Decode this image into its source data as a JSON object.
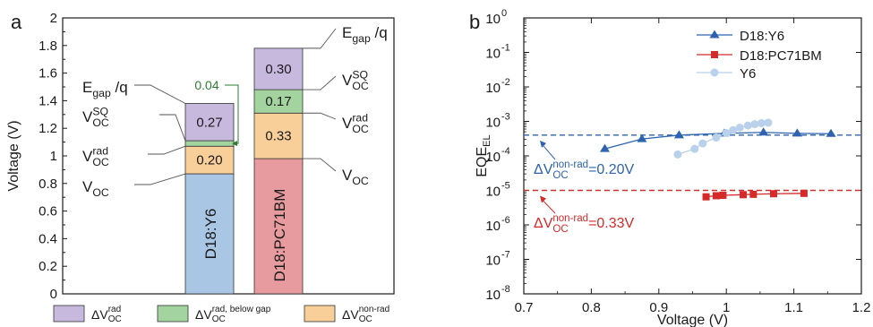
{
  "chart_data": [
    {
      "panel": "a",
      "type": "bar",
      "stacked": true,
      "ylabel": "Voltage (V)",
      "ylim": [
        0,
        2
      ],
      "yticks": [
        "0",
        "0.2",
        "0.4",
        "0.6",
        "0.8",
        "1",
        "1.2",
        "1.4",
        "1.6",
        "1.8",
        "2"
      ],
      "categories": [
        "D18:Y6",
        "D18:PC71BM"
      ],
      "bars": [
        {
          "name": "D18:Y6",
          "voc": 0.87,
          "segments": [
            {
              "kind": "nonrad",
              "from": 0.87,
              "to": 1.07,
              "label": "0.20"
            },
            {
              "kind": "below",
              "from": 1.07,
              "to": 1.11,
              "label": "0.04"
            },
            {
              "kind": "rad",
              "from": 1.11,
              "to": 1.38,
              "label": "0.27"
            }
          ],
          "levels": [
            {
              "base": "E",
              "sub": "gap",
              "sup": "",
              "suffix": " /q",
              "value": 1.38
            },
            {
              "base": "V",
              "sub": "OC",
              "sup": "SQ",
              "suffix": "",
              "value": 1.11
            },
            {
              "base": "V",
              "sub": "OC",
              "sup": "rad",
              "suffix": "",
              "value": 1.07
            },
            {
              "base": "V",
              "sub": "OC",
              "sup": "",
              "suffix": "",
              "value": 0.87
            }
          ]
        },
        {
          "name": "D18:PC71BM",
          "voc": 0.98,
          "segments": [
            {
              "kind": "nonrad",
              "from": 0.98,
              "to": 1.31,
              "label": "0.33"
            },
            {
              "kind": "below",
              "from": 1.31,
              "to": 1.48,
              "label": "0.17"
            },
            {
              "kind": "rad",
              "from": 1.48,
              "to": 1.78,
              "label": "0.30"
            }
          ],
          "levels": [
            {
              "base": "E",
              "sub": "gap",
              "sup": "",
              "suffix": " /q",
              "value": 1.78
            },
            {
              "base": "V",
              "sub": "OC",
              "sup": "SQ",
              "suffix": "",
              "value": 1.48
            },
            {
              "base": "V",
              "sub": "OC",
              "sup": "rad",
              "suffix": "",
              "value": 1.31
            },
            {
              "base": "V",
              "sub": "OC",
              "sup": "",
              "suffix": "",
              "value": 0.98
            }
          ]
        }
      ],
      "legend": [
        {
          "kind": "rad",
          "sup": "rad"
        },
        {
          "kind": "below",
          "sup": "rad, below gap"
        },
        {
          "kind": "nonrad",
          "sup": "non-rad"
        }
      ],
      "legend_base": "ΔV",
      "legend_sub": "OC",
      "colors": {
        "rad": "#c7b8de",
        "below": "#a3d4a0",
        "nonrad": "#f8cf99",
        "voc_y6": "#a9c6e4",
        "voc_pc": "#e89b9e",
        "annotation": "#2e7d32"
      }
    },
    {
      "panel": "b",
      "type": "scatter",
      "xlabel": "Voltage (V)",
      "ylabel": "EQE",
      "ylabel_sub": "EL",
      "xlim": [
        0.7,
        1.2
      ],
      "xticks": [
        "0.7",
        "0.8",
        "0.9",
        "1",
        "1.1",
        "1.2"
      ],
      "ylim_exp": [
        -8,
        0
      ],
      "ytick_base": "10",
      "ytick_exps": [
        "-8",
        "-7",
        "-6",
        "-5",
        "-4",
        "-3",
        "-2",
        "-1",
        "0"
      ],
      "legend_position": "top-right",
      "series": [
        {
          "name": "D18:Y6",
          "marker": "triangle",
          "color": "#2e63b0",
          "x": [
            0.82,
            0.875,
            0.93,
            0.997,
            1.055,
            1.105,
            1.155
          ],
          "y": [
            0.00016,
            0.00031,
            0.0004,
            0.00045,
            0.00048,
            0.00045,
            0.00044
          ]
        },
        {
          "name": "D18:PC71BM",
          "marker": "square",
          "color": "#d42a2a",
          "x": [
            0.97,
            0.985,
            0.995,
            1.025,
            1.04,
            1.07,
            1.115
          ],
          "y": [
            6.5e-06,
            7e-06,
            7.2e-06,
            7.5e-06,
            7.7e-06,
            8e-06,
            8.2e-06
          ]
        },
        {
          "name": "Y6",
          "marker": "circle",
          "color": "#b9d1ea",
          "x": [
            0.928,
            0.953,
            0.965,
            0.985,
            1.0,
            1.01,
            1.02,
            1.032,
            1.042,
            1.052,
            1.062
          ],
          "y": [
            0.00011,
            0.00016,
            0.00023,
            0.00034,
            0.00046,
            0.00056,
            0.00066,
            0.00076,
            0.00083,
            0.00089,
            0.00092
          ]
        }
      ],
      "reference_lines": [
        {
          "y": 0.0004,
          "color": "#2e63b0"
        },
        {
          "y": 1e-05,
          "color": "#d42a2a"
        }
      ],
      "annotations": [
        {
          "base": "ΔV",
          "sub": "OC",
          "sup": "non-rad",
          "tail": "=0.20V",
          "color": "#2e63b0"
        },
        {
          "base": "ΔV",
          "sub": "OC",
          "sup": "non-rad",
          "tail": "=0.33V",
          "color": "#d42a2a"
        }
      ]
    }
  ]
}
